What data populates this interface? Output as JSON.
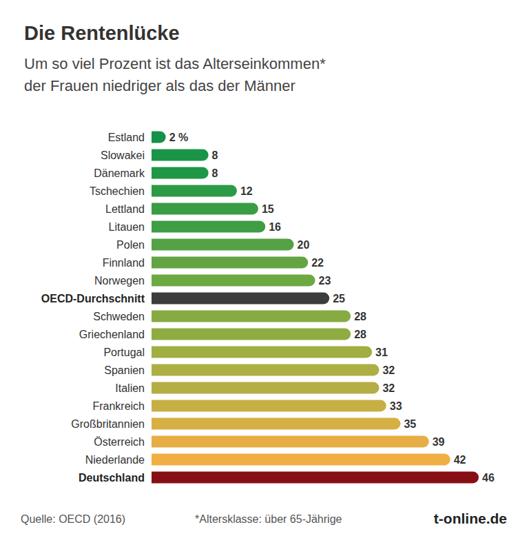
{
  "chart_data": {
    "type": "bar",
    "orientation": "horizontal",
    "title": "Die Rentenlücke",
    "subtitle": "Um so viel Prozent ist das Alterseinkommen*\nder Frauen niedriger als das der Männer",
    "categories": [
      "Estland",
      "Slowakei",
      "Dänemark",
      "Tschechien",
      "Lettland",
      "Litauen",
      "Polen",
      "Finnland",
      "Norwegen",
      "OECD-Durchschnitt",
      "Schweden",
      "Griechenland",
      "Portugal",
      "Spanien",
      "Italien",
      "Frankreich",
      "Großbritannien",
      "Österreich",
      "Niederlande",
      "Deutschland"
    ],
    "values": [
      2,
      8,
      8,
      12,
      15,
      16,
      20,
      22,
      23,
      25,
      28,
      28,
      31,
      32,
      32,
      33,
      35,
      39,
      42,
      46
    ],
    "value_labels": [
      "2 %",
      "8",
      "8",
      "12",
      "15",
      "16",
      "20",
      "22",
      "23",
      "25",
      "28",
      "28",
      "31",
      "32",
      "32",
      "33",
      "35",
      "39",
      "42",
      "46"
    ],
    "colors": [
      "#14914a",
      "#1a9548",
      "#1e9746",
      "#2d9a45",
      "#3a9c45",
      "#3f9d45",
      "#55a145",
      "#64a443",
      "#6ea843",
      "#3c3c3c",
      "#86ab42",
      "#8eac42",
      "#a1ae42",
      "#adaf44",
      "#b4ae45",
      "#c7af45",
      "#d7b045",
      "#e6ae44",
      "#efaf43",
      "#870f14"
    ],
    "xlim": [
      0,
      46
    ],
    "data_labels": true,
    "tick_labels": "y",
    "grid": false,
    "annotations": [
      "Quelle: OECD (2016)",
      "*Altersklasse: über 65-Jährige",
      "t-online.de"
    ]
  }
}
